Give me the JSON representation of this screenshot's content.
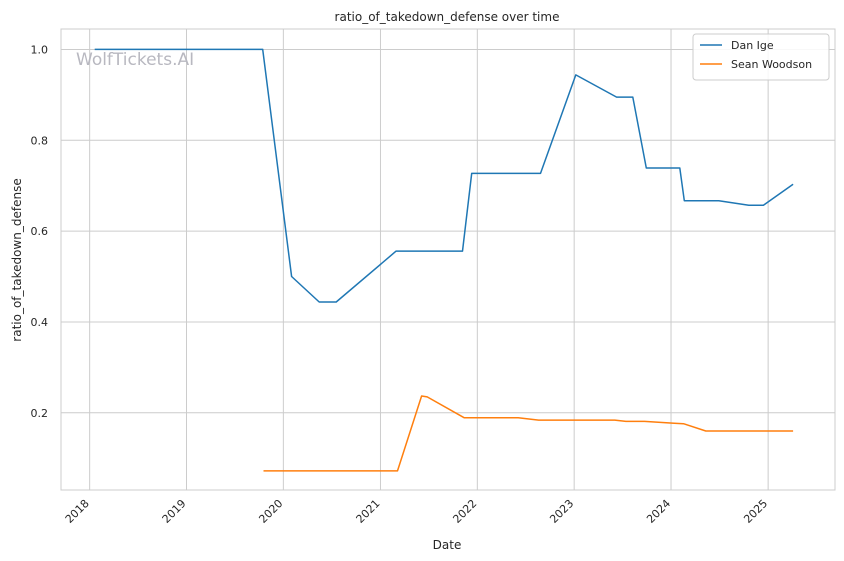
{
  "chart_data": {
    "type": "line",
    "title": "ratio_of_takedown_defense over time",
    "xlabel": "Date",
    "ylabel": "ratio_of_takedown_defense",
    "watermark": "WolfTickets.AI",
    "x_ticks": [
      "2018",
      "2019",
      "2020",
      "2021",
      "2022",
      "2023",
      "2024",
      "2025"
    ],
    "y_ticks": [
      "0.2",
      "0.4",
      "0.6",
      "0.8",
      "1.0"
    ],
    "xlim": [
      "2017-09-15",
      "2025-09-10"
    ],
    "ylim": [
      0.03,
      1.045
    ],
    "legend_position": "top-right",
    "grid": true,
    "colors": {
      "Dan Ige": "#1f77b4",
      "Sean Woodson": "#ff7f0e"
    },
    "series": [
      {
        "name": "Dan Ige",
        "points": [
          [
            "2018-01-20",
            1.0
          ],
          [
            "2019-10-15",
            1.0
          ],
          [
            "2020-02-01",
            0.5
          ],
          [
            "2020-05-15",
            0.444
          ],
          [
            "2020-07-18",
            0.444
          ],
          [
            "2021-03-01",
            0.556
          ],
          [
            "2021-11-06",
            0.556
          ],
          [
            "2021-12-11",
            0.727
          ],
          [
            "2022-08-27",
            0.727
          ],
          [
            "2023-01-07",
            0.944
          ],
          [
            "2023-06-10",
            0.895
          ],
          [
            "2023-08-10",
            0.895
          ],
          [
            "2023-09-30",
            0.739
          ],
          [
            "2024-02-03",
            0.739
          ],
          [
            "2024-02-20",
            0.667
          ],
          [
            "2024-06-29",
            0.667
          ],
          [
            "2024-10-20",
            0.657
          ],
          [
            "2024-12-14",
            0.657
          ],
          [
            "2025-04-05",
            0.703
          ]
        ]
      },
      {
        "name": "Sean Woodson",
        "points": [
          [
            "2019-10-18",
            0.072
          ],
          [
            "2021-03-06",
            0.072
          ],
          [
            "2021-06-05",
            0.237
          ],
          [
            "2021-06-26",
            0.235
          ],
          [
            "2021-11-13",
            0.189
          ],
          [
            "2022-06-04",
            0.189
          ],
          [
            "2022-08-20",
            0.184
          ],
          [
            "2023-06-03",
            0.184
          ],
          [
            "2023-07-15",
            0.181
          ],
          [
            "2023-09-23",
            0.181
          ],
          [
            "2024-01-13",
            0.177
          ],
          [
            "2024-02-17",
            0.176
          ],
          [
            "2024-05-11",
            0.16
          ],
          [
            "2025-04-05",
            0.16
          ]
        ]
      }
    ]
  }
}
